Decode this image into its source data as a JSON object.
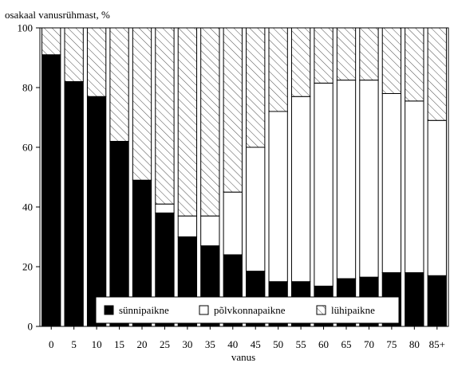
{
  "chart_data": {
    "type": "bar",
    "stacked": true,
    "title": "",
    "ylabel": "osakaal vanusrühmast, %",
    "xlabel": "vanus",
    "ylim": [
      0,
      100
    ],
    "yticks": [
      0,
      20,
      40,
      60,
      80,
      100
    ],
    "grid": false,
    "legend_position": "bottom-center",
    "categories": [
      "0",
      "5",
      "10",
      "15",
      "20",
      "25",
      "30",
      "35",
      "40",
      "45",
      "50",
      "55",
      "60",
      "65",
      "70",
      "75",
      "80",
      "85+"
    ],
    "series": [
      {
        "name": "sünnipaikne",
        "fill": "solid",
        "color": "#000000",
        "values": [
          91,
          82,
          77,
          62,
          49,
          38,
          30,
          27,
          24,
          18.5,
          15,
          15,
          13.5,
          16,
          16.5,
          18,
          18,
          17
        ]
      },
      {
        "name": "põlvkonnapaikne",
        "fill": "white",
        "color": "#ffffff",
        "values": [
          0,
          0,
          0,
          0,
          0,
          3,
          7,
          10,
          21,
          41.5,
          57,
          62,
          68,
          66.5,
          66,
          60,
          57.5,
          52
        ]
      },
      {
        "name": "lühipaikne",
        "fill": "hatched",
        "color": "#000000",
        "values": [
          9,
          18,
          23,
          38,
          51,
          59,
          63,
          63,
          55,
          40,
          28,
          23,
          18.5,
          17.5,
          17.5,
          22,
          24.5,
          31
        ]
      }
    ]
  }
}
